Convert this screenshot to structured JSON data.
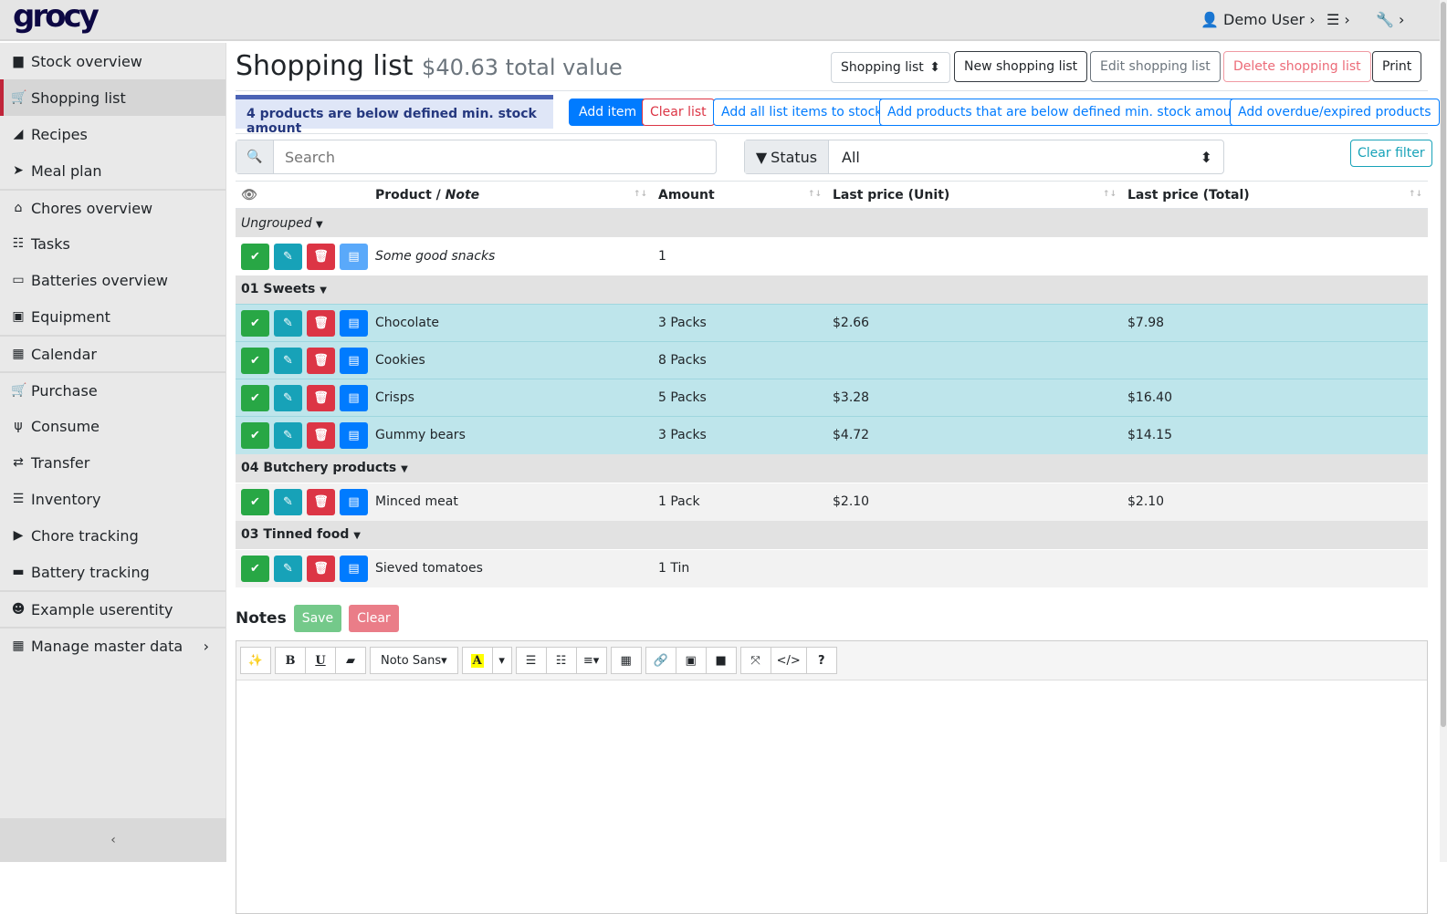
{
  "app": {
    "logo": "grocy",
    "user": "Demo User"
  },
  "sidebar": {
    "items": [
      {
        "label": "Stock overview",
        "icon": "box-icon"
      },
      {
        "label": "Shopping list",
        "icon": "cart-icon",
        "active": true
      },
      {
        "label": "Recipes",
        "icon": "pizza-icon"
      },
      {
        "label": "Meal plan",
        "icon": "paper-plane-icon"
      },
      {
        "label": "Chores overview",
        "icon": "home-icon"
      },
      {
        "label": "Tasks",
        "icon": "tasks-icon"
      },
      {
        "label": "Batteries overview",
        "icon": "battery-icon"
      },
      {
        "label": "Equipment",
        "icon": "toolbox-icon"
      },
      {
        "label": "Calendar",
        "icon": "calendar-icon"
      },
      {
        "label": "Purchase",
        "icon": "cart-plus-icon"
      },
      {
        "label": "Consume",
        "icon": "utensils-icon"
      },
      {
        "label": "Transfer",
        "icon": "exchange-icon"
      },
      {
        "label": "Inventory",
        "icon": "list-icon"
      },
      {
        "label": "Chore tracking",
        "icon": "play-icon"
      },
      {
        "label": "Battery tracking",
        "icon": "car-battery-icon"
      },
      {
        "label": "Example userentity",
        "icon": "smile-icon"
      },
      {
        "label": "Manage master data",
        "icon": "table-icon"
      }
    ]
  },
  "header": {
    "title": "Shopping list",
    "subtitle": "$40.63 total value",
    "list_select": "Shopping list",
    "new": "New shopping list",
    "edit": "Edit shopping list",
    "delete": "Delete shopping list",
    "print": "Print"
  },
  "alert": "4 products are below defined min. stock amount",
  "actions": {
    "add_item": "Add item",
    "clear_list": "Clear list",
    "add_all": "Add all list items to stock",
    "add_below": "Add products that are below defined min. stock amount",
    "add_overdue": "Add overdue/expired products"
  },
  "filters": {
    "search_placeholder": "Search",
    "status_label": "Status",
    "status_value": "All",
    "clear": "Clear filter"
  },
  "table": {
    "columns": [
      "Product / ",
      "Note",
      "Amount",
      "Last price (Unit)",
      "Last price (Total)"
    ],
    "groups": [
      {
        "name": "Ungrouped",
        "italic": true,
        "rows": [
          {
            "product": "Some good snacks",
            "note": true,
            "amount": "1",
            "unit": "",
            "total": "",
            "style": "plain"
          }
        ]
      },
      {
        "name": "01 Sweets",
        "rows": [
          {
            "product": "Chocolate",
            "amount": "3 Packs",
            "unit": "$2.66",
            "total": "$7.98",
            "style": "info"
          },
          {
            "product": "Cookies",
            "amount": "8 Packs",
            "unit": "",
            "total": "",
            "style": "info"
          },
          {
            "product": "Crisps",
            "amount": "5 Packs",
            "unit": "$3.28",
            "total": "$16.40",
            "style": "info"
          },
          {
            "product": "Gummy bears",
            "amount": "3 Packs",
            "unit": "$4.72",
            "total": "$14.15",
            "style": "info"
          }
        ]
      },
      {
        "name": "04 Butchery products",
        "rows": [
          {
            "product": "Minced meat",
            "amount": "1 Pack",
            "unit": "$2.10",
            "total": "$2.10",
            "style": "strip"
          }
        ]
      },
      {
        "name": "03 Tinned food",
        "rows": [
          {
            "product": "Sieved tomatoes",
            "amount": "1 Tin",
            "unit": "",
            "total": "",
            "style": "strip"
          }
        ]
      }
    ]
  },
  "notes": {
    "title": "Notes",
    "save": "Save",
    "clear": "Clear",
    "font": "Noto Sans"
  }
}
